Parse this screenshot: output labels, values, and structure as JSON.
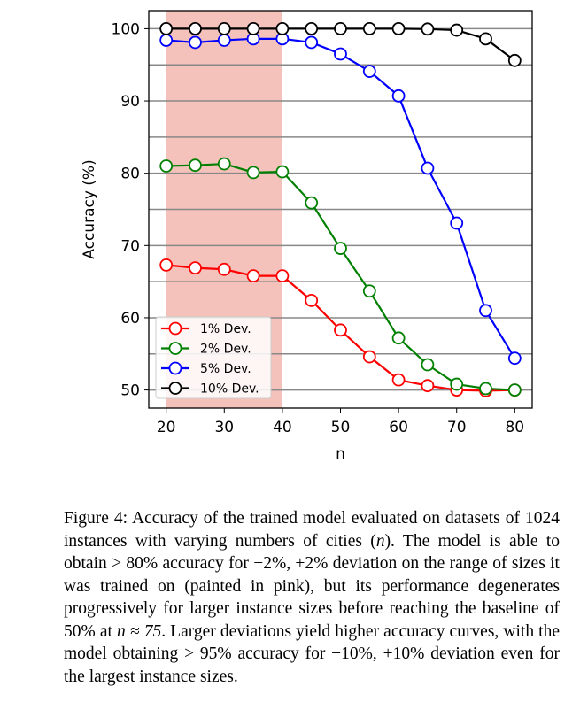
{
  "chart_data": {
    "type": "line",
    "xlabel": "n",
    "ylabel": "Accuracy (%)",
    "xlim": [
      17,
      83
    ],
    "ylim": [
      47.5,
      102.5
    ],
    "xticks": [
      20,
      30,
      40,
      50,
      60,
      70,
      80
    ],
    "yticks": [
      50,
      60,
      70,
      80,
      90,
      100
    ],
    "grid": "horizontal, every 5",
    "shaded_region": {
      "x": [
        20,
        40
      ],
      "color": "#f4c2bb"
    },
    "legend": "lower-left",
    "x": [
      20,
      25,
      30,
      35,
      40,
      45,
      50,
      55,
      60,
      65,
      70,
      75,
      80
    ],
    "series": [
      {
        "name": "1% Dev.",
        "color": "#ff0000",
        "values": [
          67.3,
          66.9,
          66.7,
          65.8,
          65.8,
          62.4,
          58.3,
          54.6,
          51.4,
          50.6,
          50.0,
          49.9,
          50.0
        ]
      },
      {
        "name": "2% Dev.",
        "color": "#008000",
        "values": [
          81.0,
          81.1,
          81.3,
          80.1,
          80.2,
          75.9,
          69.6,
          63.7,
          57.2,
          53.5,
          50.8,
          50.2,
          50.0
        ]
      },
      {
        "name": "5% Dev.",
        "color": "#0000ff",
        "values": [
          98.4,
          98.1,
          98.4,
          98.6,
          98.6,
          98.1,
          96.5,
          94.1,
          90.7,
          80.7,
          73.1,
          61.0,
          54.4
        ]
      },
      {
        "name": "10% Dev.",
        "color": "#000000",
        "values": [
          100,
          100,
          100,
          100,
          100,
          100,
          100,
          100,
          100,
          99.95,
          99.8,
          98.6,
          95.6
        ]
      }
    ]
  },
  "caption": {
    "label": "Figure 4:",
    "t1": " Accuracy of the trained model evaluated on datasets of ",
    "num1": "1024",
    "t2": " instances with varying numbers of cities (",
    "var1": "n",
    "t3": "). The model is able to obtain > ",
    "num2": "80%",
    "t4": " accuracy for ",
    "num3": "−2%, +2%",
    "t5": " deviation on the range of sizes it was trained on (painted in pink), but its performance degenerates progressively for larger instance sizes before reaching the baseline of ",
    "num4": "50%",
    "t6": " at ",
    "num5": "n ≈ 75",
    "t7": ". Larger deviations yield higher accuracy curves, with the model obtaining > ",
    "num6": "95%",
    "t8": " accuracy for ",
    "num7": "−10%, +10%",
    "t9": " deviation even for the largest instance sizes."
  }
}
